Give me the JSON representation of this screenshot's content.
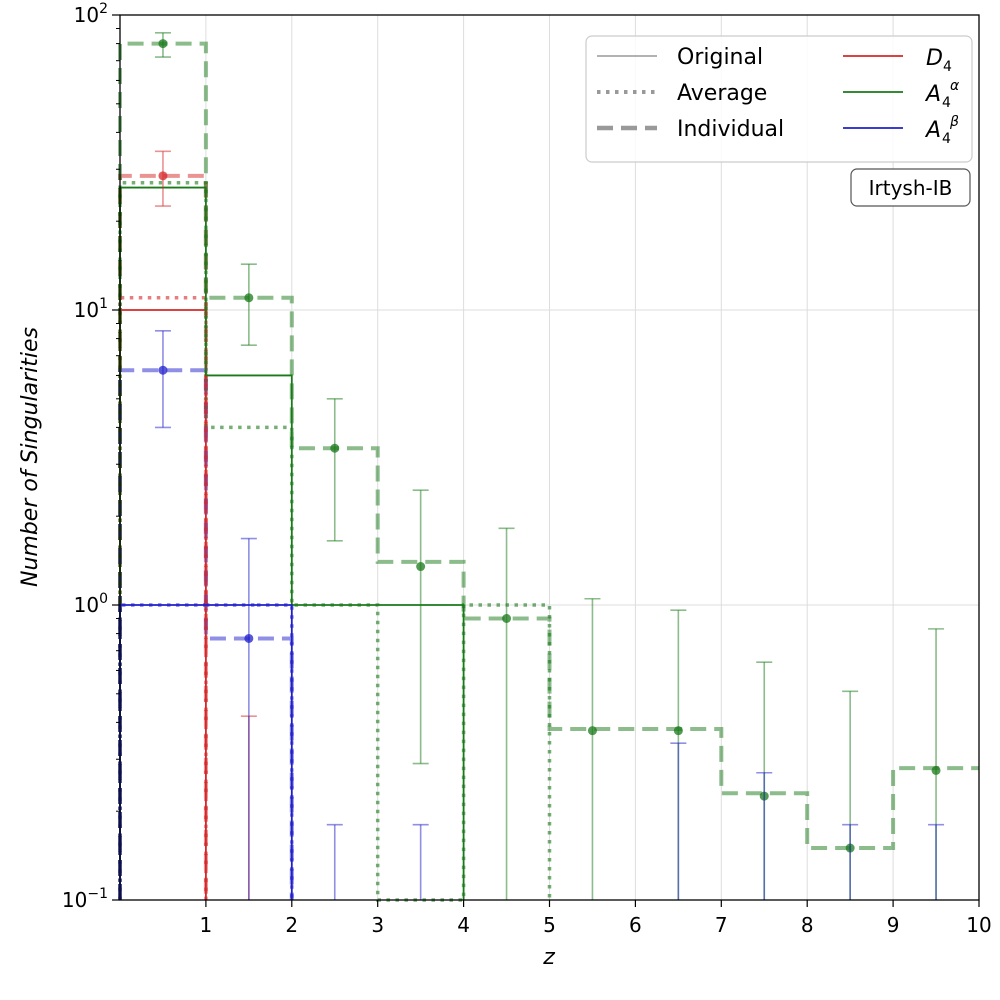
{
  "chart_data": {
    "type": "line",
    "xlabel": "z",
    "ylabel": "Number of Singularities",
    "xlim": [
      0,
      10
    ],
    "ylim": [
      0.1,
      100
    ],
    "yscale": "log",
    "grid": true,
    "legend_position": "top-right",
    "annotation": "Irtysh-IB",
    "x_ticks": [
      {
        "value": 1,
        "label": "1"
      },
      {
        "value": 2,
        "label": "2"
      },
      {
        "value": 3,
        "label": "3"
      },
      {
        "value": 4,
        "label": "4"
      },
      {
        "value": 5,
        "label": "5"
      },
      {
        "value": 6,
        "label": "6"
      },
      {
        "value": 7,
        "label": "7"
      },
      {
        "value": 8,
        "label": "8"
      },
      {
        "value": 9,
        "label": "9"
      },
      {
        "value": 10,
        "label": "10"
      }
    ],
    "y_ticks": [
      {
        "value": 0.1,
        "base": "10",
        "exp": "−1"
      },
      {
        "value": 1,
        "base": "10",
        "exp": "0"
      },
      {
        "value": 10,
        "base": "10",
        "exp": "1"
      },
      {
        "value": 100,
        "base": "10",
        "exp": "2"
      }
    ],
    "legend_styles": [
      {
        "label": "Original",
        "style": "solid"
      },
      {
        "label": "Average",
        "style": "dotted"
      },
      {
        "label": "Individual",
        "style": "dashed"
      }
    ],
    "legend_series": [
      {
        "base": "A",
        "sub": "4",
        "sup": "",
        "color": "#d62728"
      },
      {
        "base": "A",
        "sub": "4",
        "sup": "α",
        "color": "#1a7a1a"
      },
      {
        "base": "A",
        "sub": "4",
        "sup": "β",
        "color": "#1f1fcc"
      }
    ],
    "legend_series_d4_base": "D",
    "series": [
      {
        "key": "D4",
        "color": "#d62728",
        "original": [
          10,
          0,
          0,
          0,
          0,
          0,
          0,
          0,
          0,
          0
        ],
        "average": [
          11,
          0,
          0,
          0,
          0,
          0,
          0,
          0,
          0,
          0
        ],
        "individual": [
          28.5,
          0,
          0,
          0,
          0,
          0,
          0,
          0,
          0,
          0
        ],
        "points": [
          {
            "x": 0.5,
            "y": 28.5,
            "lo": 22.5,
            "hi": 34.5
          },
          {
            "x": 1.5,
            "y": 0,
            "lo": 0,
            "hi": 0.42
          }
        ]
      },
      {
        "key": "A4alpha",
        "color": "#1a7a1a",
        "original": [
          26,
          6,
          1,
          1,
          0,
          0,
          0,
          0,
          0,
          0
        ],
        "average": [
          27,
          4,
          1,
          0,
          1,
          0,
          0,
          0,
          0,
          0
        ],
        "individual": [
          80,
          11,
          3.4,
          1.4,
          0.9,
          0.38,
          0.38,
          0.23,
          0.15,
          0.28
        ],
        "points": [
          {
            "x": 0.5,
            "y": 80,
            "lo": 72,
            "hi": 87
          },
          {
            "x": 1.5,
            "y": 11,
            "lo": 7.6,
            "hi": 14.3
          },
          {
            "x": 2.5,
            "y": 3.4,
            "lo": 1.65,
            "hi": 5.0
          },
          {
            "x": 3.5,
            "y": 1.35,
            "lo": 0.29,
            "hi": 2.45
          },
          {
            "x": 4.5,
            "y": 0.9,
            "lo": 0,
            "hi": 1.82
          },
          {
            "x": 5.5,
            "y": 0.375,
            "lo": 0,
            "hi": 1.05
          },
          {
            "x": 6.5,
            "y": 0.375,
            "lo": 0,
            "hi": 0.96
          },
          {
            "x": 7.5,
            "y": 0.225,
            "lo": 0,
            "hi": 0.64
          },
          {
            "x": 8.5,
            "y": 0.15,
            "lo": 0,
            "hi": 0.51
          },
          {
            "x": 9.5,
            "y": 0.275,
            "lo": 0,
            "hi": 0.83
          }
        ]
      },
      {
        "key": "A4beta",
        "color": "#1f1fcc",
        "original": [
          1,
          1,
          0,
          0,
          0,
          0,
          0,
          0,
          0,
          0
        ],
        "average": [
          1,
          1,
          0,
          0,
          0,
          0,
          0,
          0,
          0,
          0
        ],
        "individual": [
          6.25,
          0.77,
          0,
          0,
          0,
          0,
          0,
          0,
          0,
          0
        ],
        "points": [
          {
            "x": 0.5,
            "y": 6.25,
            "lo": 4.0,
            "hi": 8.5
          },
          {
            "x": 1.5,
            "y": 0.77,
            "lo": 0,
            "hi": 1.68
          },
          {
            "x": 2.5,
            "y": 0,
            "lo": 0,
            "hi": 0.18
          },
          {
            "x": 3.5,
            "y": 0,
            "lo": 0,
            "hi": 0.18
          },
          {
            "x": 6.5,
            "y": 0,
            "lo": 0,
            "hi": 0.34
          },
          {
            "x": 7.5,
            "y": 0,
            "lo": 0,
            "hi": 0.27
          },
          {
            "x": 8.5,
            "y": 0,
            "lo": 0,
            "hi": 0.18
          },
          {
            "x": 9.5,
            "y": 0,
            "lo": 0,
            "hi": 0.18
          }
        ]
      }
    ]
  }
}
